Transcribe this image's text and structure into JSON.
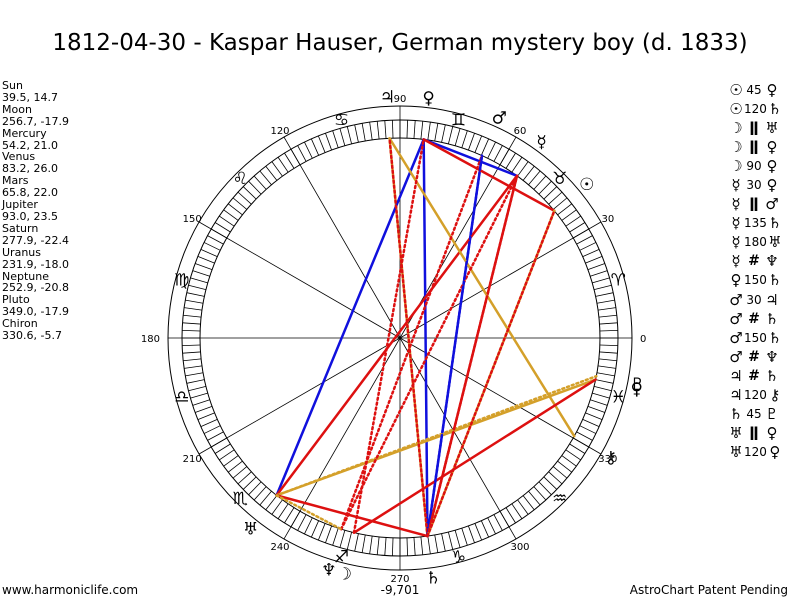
{
  "title": "1812-04-30 - Kaspar Hauser, German mystery boy (d. 1833)",
  "planets": [
    {
      "name": "Sun",
      "coords": "39.5, 14.7"
    },
    {
      "name": "Moon",
      "coords": "256.7, -17.9"
    },
    {
      "name": "Mercury",
      "coords": "54.2, 21.0"
    },
    {
      "name": "Venus",
      "coords": "83.2, 26.0"
    },
    {
      "name": "Mars",
      "coords": "65.8, 22.0"
    },
    {
      "name": "Jupiter",
      "coords": "93.0, 23.5"
    },
    {
      "name": "Saturn",
      "coords": "277.9, -22.4"
    },
    {
      "name": "Uranus",
      "coords": "231.9, -18.0"
    },
    {
      "name": "Neptune",
      "coords": "252.9, -20.8"
    },
    {
      "name": "Pluto",
      "coords": "349.0, -17.9"
    },
    {
      "name": "Chiron",
      "coords": "330.6, -5.7"
    }
  ],
  "aspects": [
    {
      "p1": "☉",
      "aspect": "45",
      "p2": "♀"
    },
    {
      "p1": "☉",
      "aspect": "120",
      "p2": "♄"
    },
    {
      "p1": "☽",
      "aspect": "ǁ",
      "p2": "♅"
    },
    {
      "p1": "☽",
      "aspect": "ǁ",
      "p2": "♀"
    },
    {
      "p1": "☽",
      "aspect": "90",
      "p2": "♀"
    },
    {
      "p1": "☿",
      "aspect": "30",
      "p2": "♀"
    },
    {
      "p1": "☿",
      "aspect": "ǁ",
      "p2": "♂"
    },
    {
      "p1": "☿",
      "aspect": "135",
      "p2": "♄"
    },
    {
      "p1": "☿",
      "aspect": "180",
      "p2": "♅"
    },
    {
      "p1": "☿",
      "aspect": "#",
      "p2": "♆"
    },
    {
      "p1": "♀",
      "aspect": "150",
      "p2": "♄"
    },
    {
      "p1": "♂",
      "aspect": "30",
      "p2": "♃"
    },
    {
      "p1": "♂",
      "aspect": "#",
      "p2": "♄"
    },
    {
      "p1": "♂",
      "aspect": "150",
      "p2": "♄"
    },
    {
      "p1": "♂",
      "aspect": "#",
      "p2": "♆"
    },
    {
      "p1": "♃",
      "aspect": "#",
      "p2": "♄"
    },
    {
      "p1": "♃",
      "aspect": "120",
      "p2": "⚷"
    },
    {
      "p1": "♄",
      "aspect": "45",
      "p2": "♇"
    },
    {
      "p1": "♅",
      "aspect": "ǁ",
      "p2": "♀"
    },
    {
      "p1": "♅",
      "aspect": "120",
      "p2": "♀"
    }
  ],
  "wheel": {
    "degree_labels": [
      "0",
      "30",
      "60",
      "90",
      "120",
      "150",
      "180",
      "210",
      "240",
      "270",
      "300",
      "330"
    ],
    "signs": [
      "♈",
      "♉",
      "♊",
      "♋",
      "♌",
      "♍",
      "♎",
      "♏",
      "♐",
      "♑",
      "♒",
      "♓"
    ],
    "center_value": "-9,701",
    "planet_positions": [
      {
        "glyph": "☉",
        "longitude": 39.5,
        "color": "#000000"
      },
      {
        "glyph": "☽",
        "longitude": 256.7,
        "color": "#000000"
      },
      {
        "glyph": "☿",
        "longitude": 54.2,
        "color": "#000000"
      },
      {
        "glyph": "♀",
        "longitude": 83.2,
        "color": "#000000"
      },
      {
        "glyph": "♂",
        "longitude": 65.8,
        "color": "#000000"
      },
      {
        "glyph": "♃",
        "longitude": 93.0,
        "color": "#000000"
      },
      {
        "glyph": "♄",
        "longitude": 277.9,
        "color": "#000000"
      },
      {
        "glyph": "♅",
        "longitude": 231.9,
        "color": "#000000"
      },
      {
        "glyph": "♆",
        "longitude": 252.9,
        "color": "#000000"
      },
      {
        "glyph": "♇",
        "longitude": 349.0,
        "color": "#000000"
      },
      {
        "glyph": "⚷",
        "longitude": 330.6,
        "color": "#000000"
      },
      {
        "glyph": "♀",
        "longitude": 348.0,
        "color": "#000000"
      }
    ],
    "aspect_lines": [
      {
        "from": 93.0,
        "to": 277.9,
        "color": "#d4a02a",
        "style": "solid"
      },
      {
        "from": 83.2,
        "to": 277.9,
        "color": "#1010dd",
        "style": "solid"
      },
      {
        "from": 83.2,
        "to": 231.9,
        "color": "#1010dd",
        "style": "solid"
      },
      {
        "from": 83.2,
        "to": 54.2,
        "color": "#1010dd",
        "style": "solid"
      },
      {
        "from": 65.8,
        "to": 277.9,
        "color": "#1010dd",
        "style": "solid"
      },
      {
        "from": 54.2,
        "to": 231.9,
        "color": "#dd1010",
        "style": "solid"
      },
      {
        "from": 54.2,
        "to": 277.9,
        "color": "#dd1010",
        "style": "solid"
      },
      {
        "from": 39.5,
        "to": 83.2,
        "color": "#dd1010",
        "style": "solid"
      },
      {
        "from": 39.5,
        "to": 277.9,
        "color": "#d4a02a",
        "style": "solid"
      },
      {
        "from": 93.0,
        "to": 330.6,
        "color": "#d4a02a",
        "style": "solid"
      },
      {
        "from": 231.9,
        "to": 348.0,
        "color": "#d4a02a",
        "style": "solid"
      },
      {
        "from": 231.9,
        "to": 349.0,
        "color": "#d4a02a",
        "style": "dotted"
      },
      {
        "from": 256.7,
        "to": 348.0,
        "color": "#dd1010",
        "style": "solid"
      },
      {
        "from": 231.9,
        "to": 277.9,
        "color": "#dd1010",
        "style": "solid"
      },
      {
        "from": 256.7,
        "to": 83.2,
        "color": "#dd1010",
        "style": "dotted"
      },
      {
        "from": 252.9,
        "to": 54.2,
        "color": "#dd1010",
        "style": "dotted"
      },
      {
        "from": 252.9,
        "to": 65.8,
        "color": "#dd1010",
        "style": "dotted"
      },
      {
        "from": 277.9,
        "to": 93.0,
        "color": "#dd1010",
        "style": "dotted"
      },
      {
        "from": 277.9,
        "to": 65.8,
        "color": "#1010dd",
        "style": "dotted"
      },
      {
        "from": 277.9,
        "to": 54.2,
        "color": "#dd1010",
        "style": "dotted"
      },
      {
        "from": 277.9,
        "to": 39.5,
        "color": "#dd1010",
        "style": "dotted"
      },
      {
        "from": 231.9,
        "to": 252.9,
        "color": "#d4a02a",
        "style": "dotted"
      }
    ]
  },
  "footer": {
    "left": "www.harmoniclife.com",
    "right": "AstroChart Patent Pending"
  },
  "colors": {
    "red": "#dd1010",
    "blue": "#1010dd",
    "gold": "#d4a02a"
  }
}
